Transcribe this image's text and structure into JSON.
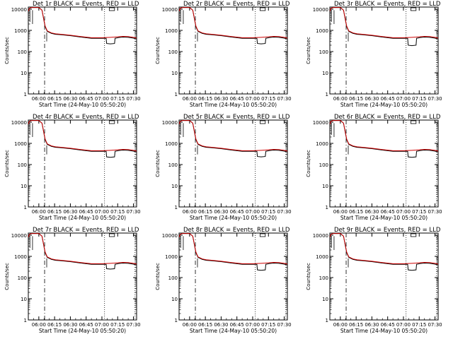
{
  "common": {
    "ylabel": "Counts/sec",
    "xlabel": "Start Time (24-May-10 05:50:20)",
    "y_ticks": [
      1,
      10,
      100,
      1000,
      10000
    ],
    "y_tick_labels": [
      "1",
      "10",
      "100",
      "1000",
      "10000"
    ],
    "x_ticks_min": [
      10,
      25,
      40,
      55,
      70,
      85,
      100
    ],
    "x_tick_labels": [
      "06:00",
      "06:15",
      "06:30",
      "06:45",
      "07:00",
      "07:15",
      "07:30"
    ],
    "colors": {
      "events": "#000000",
      "lld": "#cc0000"
    }
  },
  "chart_data": [
    {
      "type": "line",
      "title": "Det 1r BLACK = Events, RED = LLD",
      "series": [
        {
          "color_key": "events",
          "x": [
            0,
            1,
            3,
            6,
            10,
            13,
            16,
            18,
            22,
            26,
            30,
            40,
            50,
            60,
            70,
            74,
            74.5,
            78,
            82,
            82.5,
            86,
            90,
            95,
            100,
            104
          ],
          "y": [
            8000,
            11000,
            12000,
            12000,
            12000,
            9000,
            1500,
            900,
            720,
            650,
            630,
            560,
            480,
            420,
            420,
            420,
            240,
            230,
            240,
            420,
            460,
            480,
            470,
            430,
            380
          ]
        },
        {
          "color_key": "lld",
          "x": [
            0,
            1,
            3,
            6,
            10,
            13,
            16,
            18,
            22,
            26,
            30,
            40,
            50,
            60,
            70,
            74,
            78,
            82,
            86,
            90,
            95,
            100,
            104
          ],
          "y": [
            8000,
            11000,
            12000,
            12000,
            12000,
            9000,
            1600,
            950,
            760,
            690,
            660,
            590,
            510,
            450,
            450,
            460,
            470,
            480,
            500,
            520,
            510,
            470,
            420
          ]
        }
      ]
    },
    {
      "type": "line",
      "title": "Det 2r BLACK = Events, RED = LLD",
      "series": [
        {
          "color_key": "events",
          "x": [
            0,
            1,
            3,
            6,
            10,
            13,
            16,
            18,
            22,
            26,
            30,
            40,
            50,
            60,
            70,
            74,
            74.5,
            78,
            82,
            82.5,
            86,
            90,
            95,
            100,
            104
          ],
          "y": [
            8000,
            11000,
            12000,
            12000,
            12000,
            9000,
            1500,
            900,
            720,
            650,
            630,
            560,
            480,
            420,
            420,
            420,
            240,
            230,
            240,
            420,
            460,
            480,
            470,
            430,
            380
          ]
        },
        {
          "color_key": "lld",
          "x": [
            0,
            1,
            3,
            6,
            10,
            13,
            16,
            18,
            22,
            26,
            30,
            40,
            50,
            60,
            70,
            74,
            78,
            82,
            86,
            90,
            95,
            100,
            104
          ],
          "y": [
            8000,
            11000,
            12000,
            12000,
            12000,
            9000,
            1600,
            950,
            760,
            690,
            660,
            590,
            510,
            450,
            450,
            460,
            470,
            480,
            500,
            520,
            510,
            470,
            420
          ]
        }
      ]
    },
    {
      "type": "line",
      "title": "Det 3r BLACK = Events, RED = LLD",
      "series": [
        {
          "color_key": "events",
          "x": [
            0,
            1,
            3,
            6,
            10,
            13,
            16,
            18,
            22,
            26,
            30,
            40,
            50,
            60,
            70,
            74,
            74.5,
            78,
            82,
            82.5,
            86,
            90,
            95,
            100,
            104
          ],
          "y": [
            8000,
            11000,
            12000,
            12000,
            12000,
            9000,
            1500,
            900,
            720,
            650,
            630,
            560,
            480,
            420,
            420,
            420,
            200,
            190,
            200,
            420,
            460,
            480,
            470,
            430,
            380
          ]
        },
        {
          "color_key": "lld",
          "x": [
            0,
            1,
            3,
            6,
            10,
            13,
            16,
            18,
            22,
            26,
            30,
            40,
            50,
            60,
            70,
            74,
            78,
            82,
            86,
            90,
            95,
            100,
            104
          ],
          "y": [
            8000,
            11000,
            12000,
            12000,
            12000,
            9000,
            1600,
            950,
            760,
            690,
            660,
            590,
            510,
            450,
            450,
            460,
            470,
            480,
            500,
            520,
            510,
            470,
            420
          ]
        }
      ]
    },
    {
      "type": "line",
      "title": "Det 4r BLACK = Events, RED = LLD",
      "series": [
        {
          "color_key": "events",
          "x": [
            0,
            1,
            3,
            6,
            10,
            13,
            16,
            18,
            22,
            26,
            30,
            40,
            50,
            60,
            70,
            74,
            74.5,
            78,
            82,
            82.5,
            86,
            90,
            95,
            100,
            104
          ],
          "y": [
            8000,
            11000,
            12000,
            12000,
            12000,
            9000,
            1500,
            900,
            720,
            650,
            630,
            560,
            480,
            420,
            420,
            420,
            230,
            220,
            230,
            420,
            460,
            480,
            470,
            430,
            380
          ]
        },
        {
          "color_key": "lld",
          "x": [
            0,
            1,
            3,
            6,
            10,
            13,
            16,
            18,
            22,
            26,
            30,
            40,
            50,
            60,
            70,
            74,
            78,
            82,
            86,
            90,
            95,
            100,
            104
          ],
          "y": [
            8000,
            11000,
            12000,
            12000,
            12000,
            9000,
            1600,
            950,
            760,
            690,
            660,
            590,
            510,
            450,
            450,
            460,
            470,
            480,
            500,
            520,
            510,
            470,
            420
          ]
        }
      ]
    },
    {
      "type": "line",
      "title": "Det 5r BLACK = Events, RED = LLD",
      "series": [
        {
          "color_key": "events",
          "x": [
            0,
            1,
            3,
            6,
            10,
            13,
            16,
            18,
            22,
            26,
            30,
            40,
            50,
            60,
            70,
            74,
            74.5,
            78,
            82,
            82.5,
            86,
            90,
            95,
            100,
            104
          ],
          "y": [
            8000,
            11000,
            12000,
            12000,
            12000,
            9000,
            1500,
            900,
            720,
            650,
            630,
            560,
            480,
            420,
            420,
            420,
            240,
            230,
            240,
            420,
            460,
            480,
            470,
            430,
            380
          ]
        },
        {
          "color_key": "lld",
          "x": [
            0,
            1,
            3,
            6,
            10,
            13,
            16,
            18,
            22,
            26,
            30,
            40,
            50,
            60,
            70,
            74,
            78,
            82,
            86,
            90,
            95,
            100,
            104
          ],
          "y": [
            8000,
            11000,
            12000,
            12000,
            12000,
            9000,
            1600,
            950,
            760,
            690,
            660,
            590,
            510,
            450,
            450,
            460,
            470,
            480,
            500,
            520,
            510,
            470,
            420
          ]
        }
      ]
    },
    {
      "type": "line",
      "title": "Det 6r BLACK = Events, RED = LLD",
      "series": [
        {
          "color_key": "events",
          "x": [
            0,
            1,
            3,
            6,
            10,
            13,
            16,
            18,
            22,
            26,
            30,
            40,
            50,
            60,
            70,
            74,
            74.5,
            78,
            82,
            82.5,
            86,
            90,
            95,
            100,
            104
          ],
          "y": [
            8000,
            11000,
            12000,
            12000,
            12000,
            9000,
            1500,
            900,
            720,
            650,
            630,
            560,
            480,
            420,
            420,
            420,
            230,
            220,
            230,
            420,
            460,
            480,
            470,
            430,
            380
          ]
        },
        {
          "color_key": "lld",
          "x": [
            0,
            1,
            3,
            6,
            10,
            13,
            16,
            18,
            22,
            26,
            30,
            40,
            50,
            60,
            70,
            74,
            78,
            82,
            86,
            90,
            95,
            100,
            104
          ],
          "y": [
            8000,
            11000,
            12000,
            12000,
            12000,
            9000,
            1600,
            950,
            760,
            690,
            660,
            590,
            510,
            450,
            450,
            460,
            470,
            480,
            500,
            520,
            510,
            470,
            420
          ]
        }
      ]
    },
    {
      "type": "line",
      "title": "Det 7r BLACK = Events, RED = LLD",
      "series": [
        {
          "color_key": "events",
          "x": [
            0,
            1,
            3,
            6,
            10,
            13,
            16,
            18,
            22,
            26,
            30,
            40,
            50,
            60,
            70,
            74,
            74.5,
            78,
            82,
            82.5,
            86,
            90,
            95,
            100,
            104
          ],
          "y": [
            8000,
            11000,
            12000,
            12000,
            12000,
            9000,
            1500,
            900,
            720,
            650,
            630,
            560,
            480,
            420,
            420,
            420,
            260,
            250,
            260,
            420,
            460,
            480,
            470,
            430,
            380
          ]
        },
        {
          "color_key": "lld",
          "x": [
            0,
            1,
            3,
            6,
            10,
            13,
            16,
            18,
            22,
            26,
            30,
            40,
            50,
            60,
            70,
            74,
            78,
            82,
            86,
            90,
            95,
            100,
            104
          ],
          "y": [
            8000,
            11000,
            12000,
            12000,
            12000,
            9000,
            1600,
            950,
            760,
            690,
            660,
            590,
            510,
            450,
            450,
            460,
            470,
            480,
            500,
            520,
            510,
            470,
            420
          ]
        }
      ]
    },
    {
      "type": "line",
      "title": "Det 8r BLACK = Events, RED = LLD",
      "series": [
        {
          "color_key": "events",
          "x": [
            0,
            1,
            3,
            6,
            10,
            13,
            16,
            18,
            22,
            26,
            30,
            40,
            50,
            60,
            70,
            74,
            74.5,
            78,
            82,
            82.5,
            86,
            90,
            95,
            100,
            104
          ],
          "y": [
            8000,
            11000,
            12000,
            12000,
            12000,
            9000,
            1500,
            900,
            720,
            650,
            630,
            560,
            480,
            420,
            420,
            420,
            230,
            220,
            230,
            420,
            460,
            480,
            470,
            430,
            380
          ]
        },
        {
          "color_key": "lld",
          "x": [
            0,
            1,
            3,
            6,
            10,
            13,
            16,
            18,
            22,
            26,
            30,
            40,
            50,
            60,
            70,
            74,
            78,
            82,
            86,
            90,
            95,
            100,
            104
          ],
          "y": [
            8000,
            11000,
            12000,
            12000,
            12000,
            9000,
            1600,
            950,
            760,
            690,
            660,
            590,
            510,
            450,
            450,
            460,
            470,
            480,
            500,
            520,
            510,
            470,
            420
          ]
        }
      ]
    },
    {
      "type": "line",
      "title": "Det 9r BLACK = Events, RED = LLD",
      "series": [
        {
          "color_key": "events",
          "x": [
            0,
            1,
            3,
            6,
            10,
            13,
            16,
            18,
            22,
            26,
            30,
            40,
            50,
            60,
            70,
            74,
            74.5,
            78,
            82,
            82.5,
            86,
            90,
            95,
            100,
            104
          ],
          "y": [
            8000,
            11000,
            12000,
            12000,
            12000,
            9000,
            1500,
            900,
            720,
            650,
            630,
            560,
            480,
            420,
            420,
            420,
            230,
            220,
            230,
            420,
            460,
            480,
            470,
            430,
            380
          ]
        },
        {
          "color_key": "lld",
          "x": [
            0,
            1,
            3,
            6,
            10,
            13,
            16,
            18,
            22,
            26,
            30,
            40,
            50,
            60,
            70,
            74,
            78,
            82,
            86,
            90,
            95,
            100,
            104
          ],
          "y": [
            8000,
            11000,
            12000,
            12000,
            12000,
            9000,
            1600,
            950,
            760,
            690,
            660,
            590,
            510,
            450,
            450,
            460,
            470,
            480,
            500,
            520,
            510,
            470,
            420
          ]
        }
      ]
    }
  ]
}
